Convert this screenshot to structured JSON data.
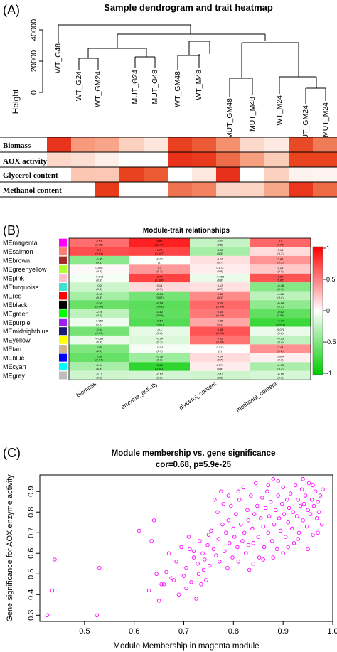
{
  "panel_a": {
    "label": "(A)",
    "title": "Sample dendrogram and trait heatmap",
    "ylabel": "Height",
    "yticks": [
      "0",
      "20000",
      "40000"
    ],
    "samples": [
      "WT_G48",
      "WT_G24",
      "WT_GM24",
      "MUT_G24",
      "MUT_G48",
      "WT_GM48",
      "WT_M48",
      "MUT_GM48",
      "MUT_M48",
      "WT_M24",
      "MUT_GM24",
      "MUT_M24"
    ],
    "traits": [
      "Biomass",
      "AOX activity",
      "Glycerol content",
      "Methanol content"
    ],
    "heat_colors": [
      [
        "#e8341c",
        "#f79a7c",
        "#f8a589",
        "#fbd1c0",
        "#fde6dc",
        "#e9401f",
        "#ed5a36",
        "#f5916f",
        "#fcd9cb",
        "#fdebe3",
        "#e84a27",
        "#f07b58"
      ],
      [
        "#fcd6c8",
        "#fcdfd3",
        "#fdf0ea",
        "#ffffff",
        "#ffffff",
        "#e8321a",
        "#e93a1e",
        "#ee6c49",
        "#f6a07f",
        "#fbcdb9",
        "#e9441f",
        "#e9431f"
      ],
      [
        "#ffffff",
        "#fbc6b2",
        "#fbc8b5",
        "#e9421e",
        "#ec5a34",
        "#ffffff",
        "#fde7de",
        "#e8311a",
        "#ffffff",
        "#fbd1bf",
        "#fdf3ee",
        "#fff4f0"
      ],
      [
        "#ffffff",
        "#ffffff",
        "#e93b1c",
        "#ffffff",
        "#ffffff",
        "#ef7350",
        "#f28260",
        "#fbd6c8",
        "#fcd4c4",
        "#f7a88a",
        "#e9361c",
        "#ee6a47"
      ]
    ]
  },
  "panel_b": {
    "label": "(B)",
    "title": "Module-trait relationships",
    "colorbar_ticks": [
      "1",
      "0.5",
      "0",
      "-0.5",
      "-1"
    ],
    "traits": [
      "biomass",
      "enzyme_activity",
      "glycerol_content",
      "methanol_content"
    ],
    "modules": [
      {
        "name": "MEmagenta",
        "color": "#ff00ff",
        "cells": [
          {
            "v": "0.57",
            "p": "(0.05)"
          },
          {
            "v": "0.87",
            "p": "(2e-04)"
          },
          {
            "v": "-0.23",
            "p": "(0.5)"
          },
          {
            "v": "0.6",
            "p": "(0.04)"
          }
        ]
      },
      {
        "name": "MEsalmon",
        "color": "#fa8072",
        "cells": [
          {
            "v": "0.7",
            "p": "(0.01)"
          },
          {
            "v": "0.73",
            "p": "(0.007)"
          },
          {
            "v": "-0.35",
            "p": "(0.3)"
          },
          {
            "v": "0.14",
            "p": "(0.7)"
          }
        ]
      },
      {
        "name": "MEbrown",
        "color": "#a52a2a",
        "cells": [
          {
            "v": "-0.45",
            "p": "(0.1)"
          },
          {
            "v": "-0.01",
            "p": "(1)"
          },
          {
            "v": "0.12",
            "p": "(0.7)"
          },
          {
            "v": "0.42",
            "p": "(0.2)"
          }
        ]
      },
      {
        "name": "MEgreenyellow",
        "color": "#adff2f",
        "cells": [
          {
            "v": "0.026",
            "p": "(0.9)"
          },
          {
            "v": "0.4",
            "p": "(0.2)"
          },
          {
            "v": "0.072",
            "p": "(0.8)"
          },
          {
            "v": "0.21",
            "p": "(0.5)"
          }
        ]
      },
      {
        "name": "MEpink",
        "color": "#ffc0cb",
        "cells": [
          {
            "v": "-0.046",
            "p": "(0.9)"
          },
          {
            "v": "0.74",
            "p": "(0.006)"
          },
          {
            "v": "-0.082",
            "p": "(0.8)"
          },
          {
            "v": "0.67",
            "p": "(0.02)"
          }
        ]
      },
      {
        "name": "MEturquoise",
        "color": "#40e0d0",
        "cells": [
          {
            "v": "-0.2",
            "p": "(0.5)"
          },
          {
            "v": "0.14",
            "p": "(0.7)"
          },
          {
            "v": "0.12",
            "p": "(0.7)"
          },
          {
            "v": "-0.48",
            "p": "(0.1)"
          }
        ]
      },
      {
        "name": "MEred",
        "color": "#ff0000",
        "cells": [
          {
            "v": "-0.35",
            "p": "(0.3)"
          },
          {
            "v": "-0.54",
            "p": "(0.07)"
          },
          {
            "v": "0.46",
            "p": "(0.1)"
          },
          {
            "v": "-0.26",
            "p": "(0.4)"
          }
        ]
      },
      {
        "name": "MEblack",
        "color": "#000000",
        "cells": [
          {
            "v": "-0.59",
            "p": "(0.04)"
          },
          {
            "v": "-0.64",
            "p": "(0.03)"
          },
          {
            "v": "0.59",
            "p": "(0.04)"
          },
          {
            "v": "-0.44",
            "p": "(0.2)"
          }
        ]
      },
      {
        "name": "MEgreen",
        "color": "#00ff00",
        "cells": [
          {
            "v": "-0.26",
            "p": "(0.4)"
          },
          {
            "v": "-0.62",
            "p": "(0.03)"
          },
          {
            "v": "0.53",
            "p": "(0.08)"
          },
          {
            "v": "-0.62",
            "p": "(0.03)"
          }
        ]
      },
      {
        "name": "MEpurple",
        "color": "#a020f0",
        "cells": [
          {
            "v": "-0.059",
            "p": "(0.9)"
          },
          {
            "v": "-0.67",
            "p": "(0.02)"
          },
          {
            "v": "0.35",
            "p": "(0.3)"
          },
          {
            "v": "-0.77",
            "p": "(0.003)"
          }
        ]
      },
      {
        "name": "MEmidnightblue",
        "color": "#191970",
        "cells": [
          {
            "v": "-0.54",
            "p": "(0.07)"
          },
          {
            "v": "-0.1",
            "p": "(0.8)"
          },
          {
            "v": "0.68",
            "p": "(0.01)"
          },
          {
            "v": "-0.078",
            "p": "(0.8)"
          }
        ]
      },
      {
        "name": "MEyellow",
        "color": "#ffff00",
        "cells": [
          {
            "v": "-0.083",
            "p": "(0.8)"
          },
          {
            "v": "-0.14",
            "p": "(0.7)"
          },
          {
            "v": "0.55",
            "p": "(0.06)"
          },
          {
            "v": "-0.25",
            "p": "(0.4)"
          }
        ]
      },
      {
        "name": "MEtan",
        "color": "#d2b48c",
        "cells": [
          {
            "v": "-0.5",
            "p": "(0.1)"
          },
          {
            "v": "-0.04",
            "p": "(0.9)"
          },
          {
            "v": "0.012",
            "p": "(1)"
          },
          {
            "v": "0.43",
            "p": "(0.2)"
          }
        ]
      },
      {
        "name": "MEblue",
        "color": "#0000ff",
        "cells": [
          {
            "v": "-0.6",
            "p": "(0.04)"
          },
          {
            "v": "-0.38",
            "p": "(0.2)"
          },
          {
            "v": "0.14",
            "p": "(0.7)"
          },
          {
            "v": "0.064",
            "p": "(0.8)"
          }
        ]
      },
      {
        "name": "MEcyan",
        "color": "#00ffff",
        "cells": [
          {
            "v": "-0.34",
            "p": "(0.3)"
          },
          {
            "v": "-0.81",
            "p": "(0.001)"
          },
          {
            "v": "0.071",
            "p": "(0.8)"
          },
          {
            "v": "-0.33",
            "p": "(0.3)"
          }
        ]
      },
      {
        "name": "MEgrey",
        "color": "#bebebe",
        "cells": [
          {
            "v": "-0.19",
            "p": "(0.5)"
          },
          {
            "v": "-0.17",
            "p": "(0.6)"
          },
          {
            "v": "-0.19",
            "p": "(0.6)"
          },
          {
            "v": "-0.16",
            "p": "(0.6)"
          }
        ]
      }
    ]
  },
  "panel_c": {
    "label": "(C)",
    "title_line1": "Module membership vs. gene significance",
    "title_line2": "cor=0.68, p=5.9e-25"
  },
  "chart_data": {
    "type": "scatter",
    "title": "Module membership vs. gene significance",
    "subtitle": "cor=0.68, p=5.9e-25",
    "xlabel": "Module Membership in magenta module",
    "ylabel": "Gene significance for AOX enzyme activity",
    "xlim": [
      0.41,
      1.0
    ],
    "ylim": [
      0.27,
      0.98
    ],
    "xticks": [
      0.5,
      0.6,
      0.7,
      0.8,
      0.9,
      1.0
    ],
    "yticks": [
      0.3,
      0.4,
      0.5,
      0.6,
      0.7,
      0.8,
      0.9
    ],
    "x_tick_labels": [
      "0.5",
      "0.6",
      "0.7",
      "0.8",
      "0.9",
      "1.0"
    ],
    "y_tick_labels": [
      "0.3",
      "0.4",
      "0.5",
      "0.6",
      "0.7",
      "0.8",
      "0.9"
    ],
    "marker_color": "#ff00ff",
    "points": [
      [
        0.425,
        0.3
      ],
      [
        0.435,
        0.42
      ],
      [
        0.44,
        0.57
      ],
      [
        0.525,
        0.3
      ],
      [
        0.53,
        0.53
      ],
      [
        0.61,
        0.71
      ],
      [
        0.63,
        0.42
      ],
      [
        0.635,
        0.66
      ],
      [
        0.64,
        0.76
      ],
      [
        0.645,
        0.5
      ],
      [
        0.65,
        0.37
      ],
      [
        0.655,
        0.45
      ],
      [
        0.66,
        0.45
      ],
      [
        0.665,
        0.51
      ],
      [
        0.67,
        0.6
      ],
      [
        0.675,
        0.48
      ],
      [
        0.68,
        0.47
      ],
      [
        0.685,
        0.56
      ],
      [
        0.69,
        0.4
      ],
      [
        0.695,
        0.63
      ],
      [
        0.7,
        0.49
      ],
      [
        0.705,
        0.43
      ],
      [
        0.705,
        0.53
      ],
      [
        0.71,
        0.68
      ],
      [
        0.712,
        0.62
      ],
      [
        0.715,
        0.46
      ],
      [
        0.72,
        0.61
      ],
      [
        0.72,
        0.58
      ],
      [
        0.725,
        0.38
      ],
      [
        0.728,
        0.55
      ],
      [
        0.73,
        0.5
      ],
      [
        0.732,
        0.66
      ],
      [
        0.735,
        0.45
      ],
      [
        0.738,
        0.6
      ],
      [
        0.74,
        0.52
      ],
      [
        0.742,
        0.57
      ],
      [
        0.745,
        0.47
      ],
      [
        0.748,
        0.64
      ],
      [
        0.75,
        0.69
      ],
      [
        0.752,
        0.54
      ],
      [
        0.755,
        0.71
      ],
      [
        0.76,
        0.62
      ],
      [
        0.762,
        0.86
      ],
      [
        0.765,
        0.59
      ],
      [
        0.768,
        0.8
      ],
      [
        0.77,
        0.67
      ],
      [
        0.772,
        0.56
      ],
      [
        0.775,
        0.9
      ],
      [
        0.778,
        0.74
      ],
      [
        0.78,
        0.84
      ],
      [
        0.782,
        0.61
      ],
      [
        0.785,
        0.7
      ],
      [
        0.788,
        0.53
      ],
      [
        0.79,
        0.76
      ],
      [
        0.792,
        0.65
      ],
      [
        0.795,
        0.83
      ],
      [
        0.798,
        0.58
      ],
      [
        0.8,
        0.72
      ],
      [
        0.802,
        0.68
      ],
      [
        0.805,
        0.79
      ],
      [
        0.808,
        0.63
      ],
      [
        0.81,
        0.56
      ],
      [
        0.812,
        0.86
      ],
      [
        0.815,
        0.74
      ],
      [
        0.818,
        0.66
      ],
      [
        0.82,
        0.92
      ],
      [
        0.822,
        0.7
      ],
      [
        0.825,
        0.6
      ],
      [
        0.828,
        0.81
      ],
      [
        0.83,
        0.76
      ],
      [
        0.832,
        0.52
      ],
      [
        0.835,
        0.88
      ],
      [
        0.838,
        0.72
      ],
      [
        0.84,
        0.65
      ],
      [
        0.842,
        0.79
      ],
      [
        0.845,
        0.94
      ],
      [
        0.848,
        0.83
      ],
      [
        0.85,
        0.68
      ],
      [
        0.852,
        0.58
      ],
      [
        0.855,
        0.77
      ],
      [
        0.858,
        0.87
      ],
      [
        0.86,
        0.73
      ],
      [
        0.862,
        0.63
      ],
      [
        0.865,
        0.82
      ],
      [
        0.868,
        0.9
      ],
      [
        0.87,
        0.7
      ],
      [
        0.872,
        0.78
      ],
      [
        0.875,
        0.85
      ],
      [
        0.878,
        0.66
      ],
      [
        0.88,
        0.96
      ],
      [
        0.882,
        0.74
      ],
      [
        0.885,
        0.81
      ],
      [
        0.888,
        0.62
      ],
      [
        0.89,
        0.88
      ],
      [
        0.892,
        0.77
      ],
      [
        0.895,
        0.71
      ],
      [
        0.898,
        0.84
      ],
      [
        0.9,
        0.92
      ],
      [
        0.902,
        0.79
      ],
      [
        0.905,
        0.68
      ],
      [
        0.908,
        0.86
      ],
      [
        0.91,
        0.75
      ],
      [
        0.912,
        0.82
      ],
      [
        0.915,
        0.89
      ],
      [
        0.918,
        0.72
      ],
      [
        0.92,
        0.8
      ],
      [
        0.922,
        0.65
      ],
      [
        0.925,
        0.93
      ],
      [
        0.928,
        0.78
      ],
      [
        0.93,
        0.86
      ],
      [
        0.932,
        0.7
      ],
      [
        0.935,
        0.83
      ],
      [
        0.938,
        0.91
      ],
      [
        0.94,
        0.76
      ],
      [
        0.942,
        0.84
      ],
      [
        0.945,
        0.88
      ],
      [
        0.948,
        0.73
      ],
      [
        0.95,
        0.81
      ],
      [
        0.952,
        0.94
      ],
      [
        0.955,
        0.79
      ],
      [
        0.958,
        0.86
      ],
      [
        0.96,
        0.69
      ],
      [
        0.962,
        0.83
      ],
      [
        0.965,
        0.9
      ],
      [
        0.968,
        0.77
      ],
      [
        0.97,
        0.85
      ],
      [
        0.972,
        0.8
      ],
      [
        0.975,
        0.88
      ],
      [
        0.978,
        0.74
      ],
      [
        0.98,
        0.91
      ],
      [
        0.88,
        0.58
      ],
      [
        0.86,
        0.57
      ],
      [
        0.9,
        0.6
      ],
      [
        0.91,
        0.63
      ],
      [
        0.84,
        0.55
      ],
      [
        0.83,
        0.64
      ],
      [
        0.93,
        0.67
      ],
      [
        0.95,
        0.62
      ],
      [
        0.97,
        0.7
      ],
      [
        0.79,
        0.88
      ],
      [
        0.81,
        0.9
      ],
      [
        0.87,
        0.93
      ],
      [
        0.89,
        0.95
      ],
      [
        0.94,
        0.96
      ],
      [
        0.96,
        0.93
      ]
    ]
  }
}
